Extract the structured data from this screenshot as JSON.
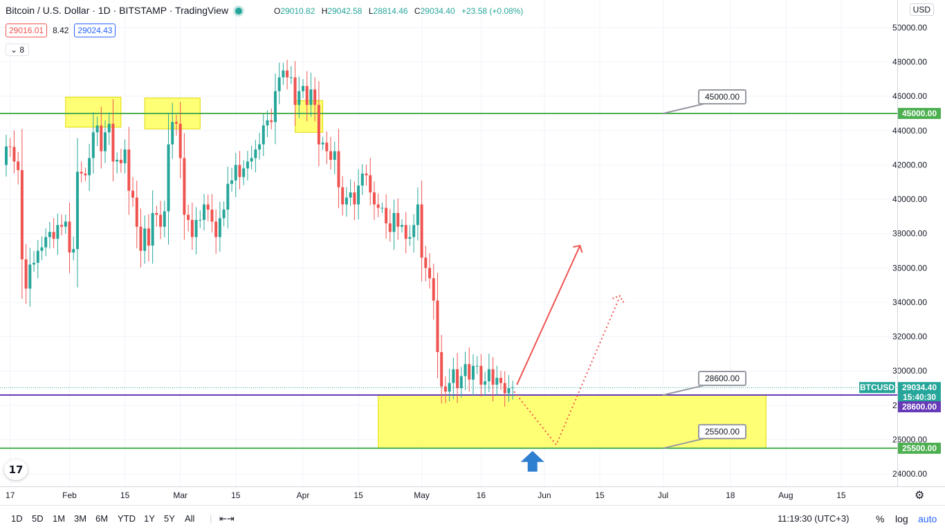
{
  "header": {
    "title": "Bitcoin / U.S. Dollar · 1D · BITSTAMP · TradingView",
    "ohlc": {
      "o": "29010.82",
      "h": "29042.58",
      "l": "28814.46",
      "c": "29034.40",
      "chg": "+23.58 (+0.08%)"
    },
    "sell_price": "29016.01",
    "spread": "8.42",
    "buy_price": "29024.43",
    "indicators_count": "8",
    "currency": "USD"
  },
  "colors": {
    "up": "#26a69a",
    "down": "#ef5350",
    "level": "#4caf50",
    "purple": "#673ab7",
    "zone": "#ffff66",
    "arrow_red": "#ef5350",
    "arrow_blue": "#2962ff"
  },
  "chart_data": {
    "type": "candlestick",
    "ylim": [
      23200,
      50600
    ],
    "y_ticks": [
      "24000.00",
      "26000.00",
      "28000.00",
      "30000.00",
      "32000.00",
      "34000.00",
      "36000.00",
      "38000.00",
      "40000.00",
      "42000.00",
      "44000.00",
      "46000.00",
      "48000.00",
      "50000.00"
    ],
    "x_ticks": [
      {
        "label": "17",
        "date": "2022-01-17"
      },
      {
        "label": "Feb",
        "date": "2022-02-01"
      },
      {
        "label": "15",
        "date": "2022-02-15"
      },
      {
        "label": "Mar",
        "date": "2022-03-01"
      },
      {
        "label": "15",
        "date": "2022-03-15"
      },
      {
        "label": "Apr",
        "date": "2022-04-01"
      },
      {
        "label": "15",
        "date": "2022-04-15"
      },
      {
        "label": "May",
        "date": "2022-05-01"
      },
      {
        "label": "16",
        "date": "2022-05-16"
      },
      {
        "label": "Jun",
        "date": "2022-06-01"
      },
      {
        "label": "15",
        "date": "2022-06-15"
      },
      {
        "label": "Jul",
        "date": "2022-07-01"
      },
      {
        "label": "18",
        "date": "2022-07-18"
      },
      {
        "label": "Aug",
        "date": "2022-08-01"
      },
      {
        "label": "15",
        "date": "2022-08-15"
      }
    ],
    "start_date": "2022-01-16",
    "closes": [
      43080,
      43050,
      42200,
      41700,
      36500,
      34800,
      36200,
      36300,
      37000,
      37200,
      37800,
      38100,
      37700,
      38500,
      38400,
      38700,
      36900,
      37100,
      41600,
      41500,
      41400,
      42400,
      43900,
      44300,
      42800,
      43900,
      44400,
      42200,
      42300,
      42100,
      42900,
      40500,
      40100,
      38400,
      37000,
      38300,
      37300,
      39200,
      39100,
      38400,
      39300,
      43200,
      44500,
      44400,
      42400,
      39100,
      38800,
      37800,
      38800,
      38800,
      39700,
      39400,
      38700,
      37800,
      38900,
      39400,
      40900,
      41100,
      42000,
      41300,
      41800,
      42200,
      42400,
      42900,
      43200,
      44300,
      44600,
      44500,
      46300,
      47100,
      47500,
      47100,
      47100,
      45500,
      46300,
      46600,
      45500,
      46400,
      45500,
      43200,
      43300,
      42800,
      42300,
      42800,
      40700,
      39700,
      40100,
      40400,
      39700,
      40800,
      41500,
      41400,
      40400,
      39700,
      39500,
      39500,
      38600,
      38100,
      39200,
      38400,
      38500,
      37700,
      37800,
      38500,
      39700,
      36600,
      36000,
      35400,
      34100,
      31100,
      29100,
      28800,
      29300,
      30100,
      29000,
      29700,
      30400,
      29500,
      30300,
      30300,
      29200,
      29400,
      30100,
      29200,
      29600,
      29300,
      28700,
      29000,
      29034
    ]
  },
  "levels": {
    "level_45000": "45000.00",
    "level_28600": "28600.00",
    "level_25500": "25500.00"
  },
  "axis_labels": {
    "btc": "BTCUSD",
    "last_price": "29034.40",
    "countdown": "15:40:30",
    "p45": "45000.00",
    "p28600": "28600.00",
    "p25500": "25500.00"
  },
  "bottom": {
    "ranges": [
      "1D",
      "5D",
      "1M",
      "3M",
      "6M",
      "YTD",
      "1Y",
      "5Y",
      "All"
    ],
    "clock": "11:19:30 (UTC+3)",
    "percent": "%",
    "log": "log",
    "auto": "auto"
  },
  "logo_text": "17"
}
